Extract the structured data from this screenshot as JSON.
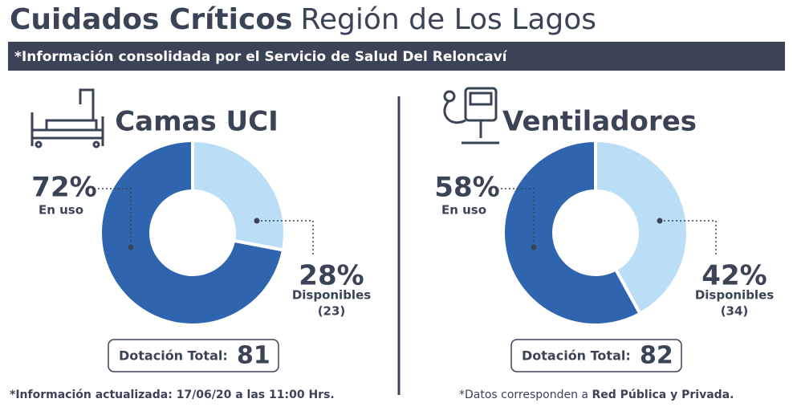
{
  "header": {
    "title_bold": "Cuidados Críticos",
    "title_rest": "Región de Los Lagos",
    "subtitle": "*Información consolidada por el Servicio de Salud Del Reloncaví"
  },
  "chart_data": [
    {
      "type": "pie",
      "title": "Camas UCI",
      "categories": [
        "En uso",
        "Disponibles"
      ],
      "values": [
        72,
        28
      ],
      "value_labels": [
        "72%",
        "28%"
      ],
      "colors": [
        "#2f65ae",
        "#b9def6"
      ],
      "available": {
        "value": 23,
        "label": "(23)"
      },
      "total_label": "Dotación Total:",
      "total": 81
    },
    {
      "type": "pie",
      "title": "Ventiladores",
      "categories": [
        "En uso",
        "Disponibles"
      ],
      "values": [
        58,
        42
      ],
      "value_labels": [
        "58%",
        "42%"
      ],
      "colors": [
        "#2f65ae",
        "#b9def6"
      ],
      "available": {
        "value": 34,
        "label": "(34)"
      },
      "total_label": "Dotación Total:",
      "total": 82
    }
  ],
  "footer": {
    "left": "*Información actualizada: 17/06/20 a las 11:00 Hrs.",
    "right_plain": "*Datos corresponden a ",
    "right_bold": "Red Pública y Privada."
  }
}
